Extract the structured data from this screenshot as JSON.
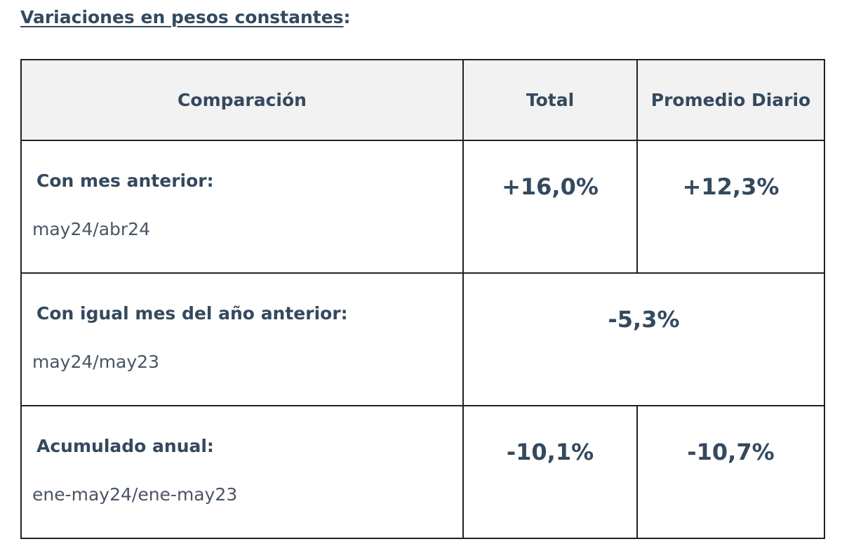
{
  "title": {
    "text": "Variaciones en pesos constantes",
    "suffix": ":"
  },
  "table": {
    "headers": [
      "Comparación",
      "Total",
      "Promedio Diario"
    ],
    "rows": [
      {
        "label": "Con mes anterior:",
        "period": "may24/abr24",
        "total": "+16,0%",
        "daily": "+12,3%"
      },
      {
        "label": "Con igual mes del año anterior:",
        "period": "may24/may23",
        "combined": "-5,3%"
      },
      {
        "label": "Acumulado anual:",
        "period": "ene-may24/ene-may23",
        "total": "-10,1%",
        "daily": "-10,7%"
      }
    ]
  }
}
